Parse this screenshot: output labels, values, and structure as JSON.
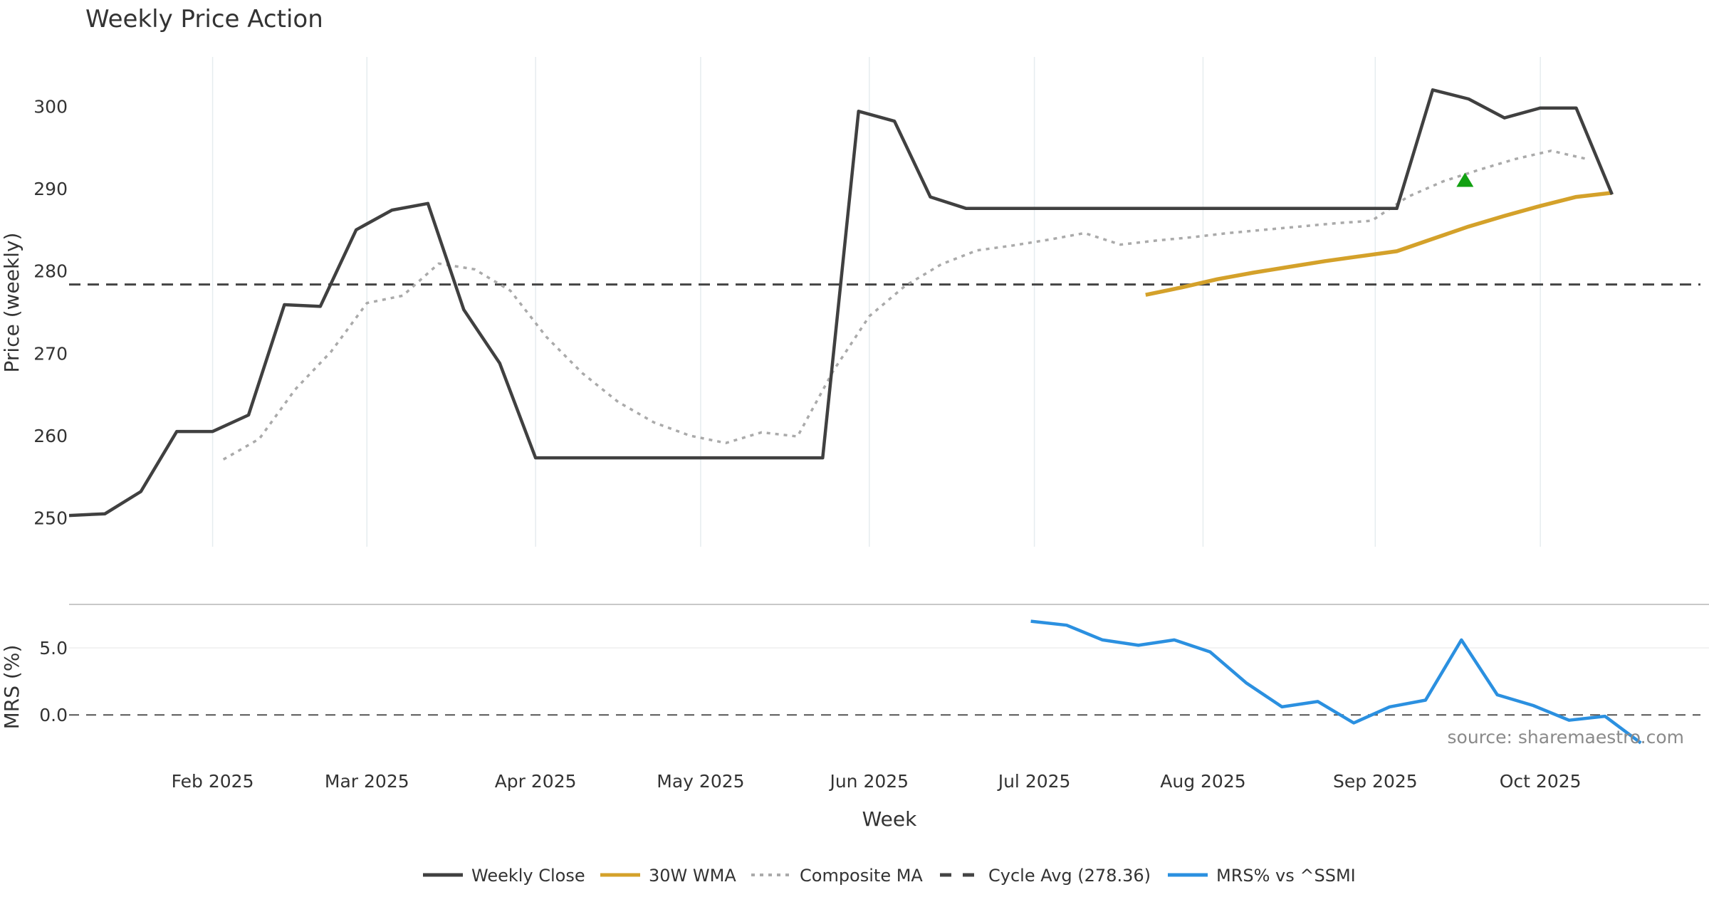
{
  "chart_data": {
    "type": "line",
    "title": "Weekly Price Action",
    "xlabel": "Week",
    "source": "source: sharemaestro.com",
    "x_ticks": [
      "Feb 2025",
      "Mar 2025",
      "Apr 2025",
      "May 2025",
      "Jun 2025",
      "Jul 2025",
      "Aug 2025",
      "Sep 2025",
      "Oct 2025"
    ],
    "x_tick_pos": [
      4.0,
      8.3,
      13.0,
      17.6,
      22.3,
      26.9,
      31.6,
      36.4,
      41.0
    ],
    "x_range": [
      0,
      45.7
    ],
    "price_panel": {
      "ylabel": "Price (weekly)",
      "ylim": [
        246.5,
        306
      ],
      "yticks": [
        "250",
        "260",
        "270",
        "280",
        "290",
        "300"
      ],
      "ytick_values": [
        250,
        260,
        270,
        280,
        290,
        300
      ],
      "grid": "vertical",
      "series": [
        {
          "name": "Weekly Close",
          "color": "#404040",
          "style": "solid",
          "points": [
            [
              0,
              250.3
            ],
            [
              1,
              250.5
            ],
            [
              2,
              253.2
            ],
            [
              3,
              260.5
            ],
            [
              4,
              260.5
            ],
            [
              5,
              262.5
            ],
            [
              6,
              275.9
            ],
            [
              7,
              275.7
            ],
            [
              8,
              285.0
            ],
            [
              9,
              287.4
            ],
            [
              10,
              288.2
            ],
            [
              11,
              275.3
            ],
            [
              12,
              268.8
            ],
            [
              13,
              257.3
            ],
            [
              14,
              257.3
            ],
            [
              15,
              257.3
            ],
            [
              16,
              257.3
            ],
            [
              17,
              257.3
            ],
            [
              18,
              257.3
            ],
            [
              19,
              257.3
            ],
            [
              20,
              257.3
            ],
            [
              21,
              257.3
            ],
            [
              22,
              299.4
            ],
            [
              23,
              298.2
            ],
            [
              24,
              289.0
            ],
            [
              25,
              287.6
            ],
            [
              26,
              287.6
            ],
            [
              27,
              287.6
            ],
            [
              28,
              287.6
            ],
            [
              29,
              287.6
            ],
            [
              30,
              287.6
            ],
            [
              31,
              287.6
            ],
            [
              32,
              287.6
            ],
            [
              33,
              287.6
            ],
            [
              34,
              287.6
            ],
            [
              35,
              287.6
            ],
            [
              36,
              287.6
            ],
            [
              37,
              287.6
            ],
            [
              38,
              302.0
            ],
            [
              39,
              300.9
            ],
            [
              40,
              298.6
            ],
            [
              41,
              299.8
            ],
            [
              42,
              299.8
            ],
            [
              43,
              289.3
            ]
          ]
        },
        {
          "name": "30W WMA",
          "color": "#d4a12a",
          "style": "solid",
          "points": [
            [
              30.0,
              277.1
            ],
            [
              31.0,
              278.0
            ],
            [
              32.0,
              279.0
            ],
            [
              33.0,
              279.8
            ],
            [
              34.0,
              280.5
            ],
            [
              35.0,
              281.2
            ],
            [
              36.0,
              281.8
            ],
            [
              37.0,
              282.4
            ],
            [
              38.0,
              283.9
            ],
            [
              39.0,
              285.4
            ],
            [
              40.0,
              286.7
            ],
            [
              41.0,
              287.9
            ],
            [
              42.0,
              289.0
            ],
            [
              43.0,
              289.5
            ]
          ]
        },
        {
          "name": "Composite MA",
          "color": "#aaaaaa",
          "style": "dotted",
          "points": [
            [
              4.3,
              257.1
            ],
            [
              5.3,
              259.6
            ],
            [
              6.3,
              265.6
            ],
            [
              7.3,
              270.2
            ],
            [
              8.3,
              276.1
            ],
            [
              9.3,
              277.0
            ],
            [
              10.3,
              280.9
            ],
            [
              11.3,
              280.2
            ],
            [
              12.3,
              277.6
            ],
            [
              13.3,
              272.0
            ],
            [
              14.3,
              267.6
            ],
            [
              15.3,
              264.1
            ],
            [
              16.3,
              261.6
            ],
            [
              17.3,
              260.0
            ],
            [
              18.3,
              259.1
            ],
            [
              19.3,
              260.4
            ],
            [
              20.3,
              259.9
            ],
            [
              21.3,
              267.9
            ],
            [
              22.3,
              274.5
            ],
            [
              23.3,
              278.2
            ],
            [
              24.3,
              280.8
            ],
            [
              25.3,
              282.5
            ],
            [
              26.3,
              283.1
            ],
            [
              27.3,
              283.8
            ],
            [
              28.3,
              284.6
            ],
            [
              29.3,
              283.2
            ],
            [
              30.3,
              283.7
            ],
            [
              31.3,
              284.1
            ],
            [
              32.3,
              284.6
            ],
            [
              33.3,
              285.0
            ],
            [
              34.3,
              285.4
            ],
            [
              35.3,
              285.8
            ],
            [
              36.3,
              286.1
            ],
            [
              37.3,
              289.0
            ],
            [
              38.3,
              290.9
            ],
            [
              39.3,
              292.3
            ],
            [
              40.3,
              293.6
            ],
            [
              41.3,
              294.6
            ],
            [
              42.3,
              293.6
            ]
          ]
        },
        {
          "name": "Cycle Avg (278.36)",
          "color": "#444444",
          "style": "dashed",
          "value": 278.36
        }
      ],
      "markers": [
        {
          "name": "buy-signal",
          "shape": "triangle-up",
          "color": "#11a011",
          "x": 38.9,
          "y": 291.0
        }
      ]
    },
    "mrs_panel": {
      "ylabel": "MRS (%)",
      "ylim": [
        -3.5,
        8.2
      ],
      "yticks": [
        "0.0",
        "5.0"
      ],
      "ytick_values": [
        0,
        5
      ],
      "series": [
        {
          "name": "MRS% vs ^SSMI",
          "color": "#2b90e0",
          "style": "solid",
          "points": [
            [
              26.8,
              7.0
            ],
            [
              27.8,
              6.7
            ],
            [
              28.8,
              5.6
            ],
            [
              29.8,
              5.2
            ],
            [
              30.8,
              5.6
            ],
            [
              31.8,
              4.7
            ],
            [
              32.8,
              2.4
            ],
            [
              33.8,
              0.6
            ],
            [
              34.8,
              1.0
            ],
            [
              35.8,
              -0.6
            ],
            [
              36.8,
              0.6
            ],
            [
              37.8,
              1.1
            ],
            [
              38.8,
              5.6
            ],
            [
              39.8,
              1.5
            ],
            [
              40.8,
              0.7
            ],
            [
              41.8,
              -0.4
            ],
            [
              42.8,
              -0.1
            ],
            [
              43.8,
              -2.1
            ]
          ]
        }
      ],
      "zero_line": 0
    },
    "legend": {
      "position": "bottom-center",
      "entries": [
        {
          "label": "Weekly Close",
          "color": "#404040",
          "style": "solid"
        },
        {
          "label": "30W WMA",
          "color": "#d4a12a",
          "style": "solid"
        },
        {
          "label": "Composite MA",
          "color": "#aaaaaa",
          "style": "dotted"
        },
        {
          "label": "Cycle Avg (278.36)",
          "color": "#444444",
          "style": "dashed"
        },
        {
          "label": "MRS% vs ^SSMI",
          "color": "#2b90e0",
          "style": "solid"
        }
      ]
    }
  }
}
